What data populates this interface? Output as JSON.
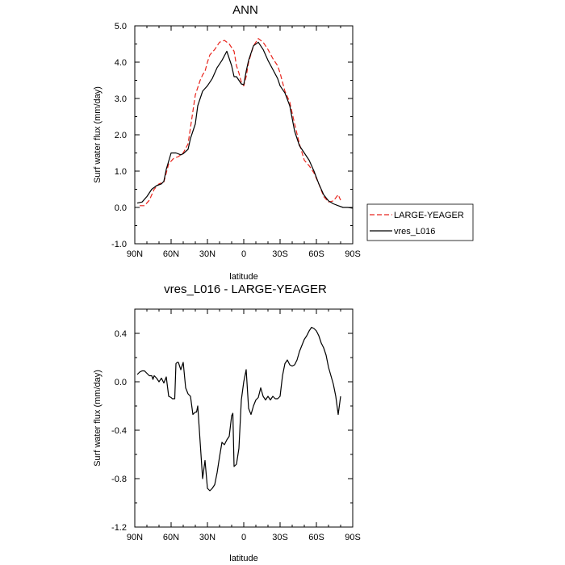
{
  "chart_data": [
    {
      "type": "line",
      "title": "ANN",
      "xlabel": "latitude",
      "ylabel": "Surf water flux (mm/day)",
      "xlim": [
        90,
        -90
      ],
      "ylim": [
        -1.0,
        5.0
      ],
      "xticks": [
        90,
        60,
        30,
        0,
        -30,
        -60,
        -90
      ],
      "xticklabels": [
        "90N",
        "60N",
        "30N",
        "0",
        "30S",
        "60S",
        "90S"
      ],
      "yticks": [
        -1.0,
        0.0,
        1.0,
        2.0,
        3.0,
        4.0,
        5.0
      ],
      "yticklabels": [
        "-1.0",
        "0.0",
        "1.0",
        "2.0",
        "3.0",
        "4.0",
        "5.0"
      ],
      "grid": false,
      "legend_position": "outside-right",
      "series": [
        {
          "name": "LARGE-YEAGER",
          "color": "#e8251d",
          "dash": "dashed",
          "x": [
            86,
            82,
            78,
            74,
            70,
            66,
            62,
            58,
            54,
            50,
            46,
            44,
            40,
            38,
            36,
            34,
            32,
            30,
            28,
            24,
            20,
            16,
            12,
            8,
            6,
            4,
            2,
            0,
            -2,
            -4,
            -8,
            -12,
            -16,
            -20,
            -24,
            -28,
            -30,
            -34,
            -38,
            -42,
            -46,
            -50,
            -54,
            -58,
            -62,
            -66,
            -70,
            -74,
            -78,
            -80
          ],
          "y": [
            0.05,
            0.05,
            0.2,
            0.5,
            0.65,
            0.7,
            1.2,
            1.35,
            1.4,
            1.5,
            1.75,
            2.2,
            3.1,
            3.3,
            3.5,
            3.65,
            3.75,
            4.0,
            4.2,
            4.35,
            4.55,
            4.6,
            4.5,
            4.3,
            3.9,
            3.7,
            3.45,
            3.35,
            3.6,
            4.0,
            4.45,
            4.65,
            4.55,
            4.35,
            4.1,
            3.9,
            3.7,
            3.2,
            2.9,
            2.3,
            1.75,
            1.3,
            1.15,
            0.95,
            0.65,
            0.3,
            0.15,
            0.18,
            0.35,
            0.2
          ]
        },
        {
          "name": "vres_L016",
          "color": "#000000",
          "dash": "solid",
          "x": [
            88,
            84,
            80,
            76,
            72,
            68,
            66,
            64,
            60,
            56,
            52,
            50,
            46,
            44,
            40,
            38,
            36,
            34,
            30,
            26,
            22,
            18,
            14,
            10,
            8,
            6,
            4,
            2,
            0,
            -2,
            -4,
            -8,
            -12,
            -16,
            -20,
            -24,
            -28,
            -30,
            -34,
            -38,
            -42,
            -46,
            -50,
            -54,
            -58,
            -62,
            -66,
            -70,
            -74,
            -78,
            -82,
            -86,
            -90
          ],
          "y": [
            0.12,
            0.15,
            0.3,
            0.5,
            0.6,
            0.65,
            0.72,
            1.05,
            1.5,
            1.5,
            1.45,
            1.48,
            1.6,
            1.9,
            2.3,
            2.8,
            3.0,
            3.2,
            3.35,
            3.55,
            3.85,
            4.05,
            4.3,
            3.9,
            3.6,
            3.6,
            3.5,
            3.4,
            3.38,
            3.75,
            4.05,
            4.45,
            4.55,
            4.35,
            4.05,
            3.8,
            3.55,
            3.35,
            3.15,
            2.8,
            2.1,
            1.7,
            1.5,
            1.3,
            1.0,
            0.65,
            0.35,
            0.18,
            0.1,
            0.05,
            0.0,
            0.0,
            -0.02
          ]
        }
      ]
    },
    {
      "type": "line",
      "title": "vres_L016 - LARGE-YEAGER",
      "xlabel": "latitude",
      "ylabel": "Surf water flux (mm/day)",
      "xlim": [
        90,
        -90
      ],
      "ylim": [
        -1.2,
        0.6
      ],
      "xticks": [
        90,
        60,
        30,
        0,
        -30,
        -60,
        -90
      ],
      "xticklabels": [
        "90N",
        "60N",
        "30N",
        "0",
        "30S",
        "60S",
        "90S"
      ],
      "yticks": [
        -1.2,
        -0.8,
        -0.4,
        0.0,
        0.4
      ],
      "yticklabels": [
        "-1.2",
        "-0.8",
        "-0.4",
        "0.0",
        "0.4"
      ],
      "grid": false,
      "series": [
        {
          "name": "vres_L016 - LARGE-YEAGER",
          "color": "#000000",
          "dash": "solid",
          "x": [
            88,
            86,
            84,
            82,
            80,
            78,
            76,
            75,
            74,
            72,
            70,
            68,
            66,
            64,
            62,
            60,
            59,
            57,
            56,
            55,
            54,
            52,
            50,
            48,
            46,
            44,
            42,
            40,
            39,
            38,
            37,
            36,
            34,
            32,
            30,
            28,
            26,
            24,
            22,
            20,
            18,
            16,
            14,
            12,
            10,
            9,
            8,
            6,
            4,
            2,
            0,
            -2,
            -4,
            -6,
            -8,
            -10,
            -12,
            -14,
            -16,
            -18,
            -20,
            -22,
            -24,
            -26,
            -28,
            -30,
            -32,
            -34,
            -36,
            -38,
            -40,
            -42,
            -44,
            -46,
            -48,
            -50,
            -52,
            -54,
            -56,
            -58,
            -60,
            -62,
            -64,
            -66,
            -68,
            -70,
            -72,
            -74,
            -76,
            -78,
            -80
          ],
          "y": [
            0.06,
            0.08,
            0.09,
            0.09,
            0.07,
            0.05,
            0.05,
            0.02,
            0.05,
            0.03,
            0.0,
            0.03,
            -0.01,
            0.04,
            -0.12,
            -0.13,
            -0.14,
            -0.14,
            0.15,
            0.16,
            0.16,
            0.1,
            0.16,
            -0.05,
            -0.1,
            -0.12,
            -0.27,
            -0.25,
            -0.25,
            -0.2,
            -0.35,
            -0.5,
            -0.8,
            -0.65,
            -0.88,
            -0.9,
            -0.88,
            -0.85,
            -0.75,
            -0.62,
            -0.5,
            -0.52,
            -0.48,
            -0.45,
            -0.28,
            -0.26,
            -0.7,
            -0.68,
            -0.55,
            -0.15,
            0.0,
            0.1,
            -0.22,
            -0.27,
            -0.2,
            -0.15,
            -0.13,
            -0.05,
            -0.12,
            -0.15,
            -0.12,
            -0.15,
            -0.12,
            -0.14,
            -0.14,
            -0.12,
            0.05,
            0.15,
            0.18,
            0.14,
            0.13,
            0.14,
            0.18,
            0.25,
            0.3,
            0.35,
            0.38,
            0.42,
            0.45,
            0.44,
            0.42,
            0.38,
            0.32,
            0.28,
            0.22,
            0.12,
            0.05,
            -0.02,
            -0.12,
            -0.27,
            -0.12
          ]
        }
      ]
    }
  ]
}
